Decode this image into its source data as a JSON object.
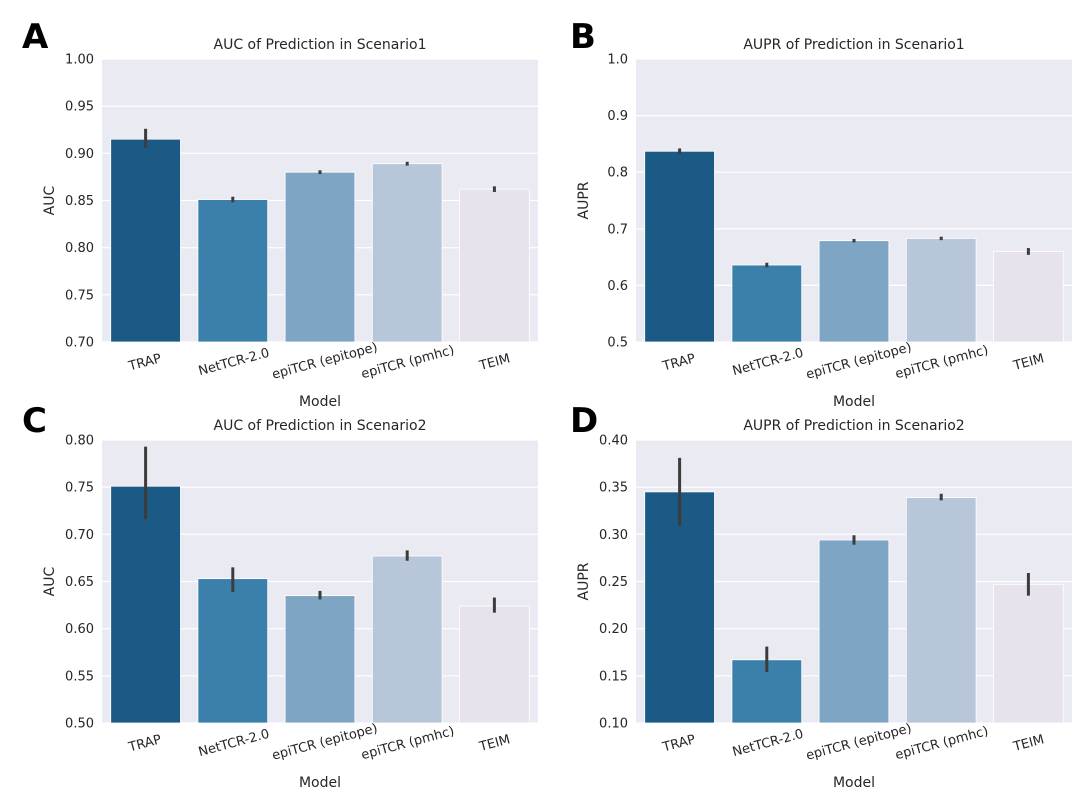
{
  "chart_data": [
    {
      "panel_label": "A",
      "type": "bar",
      "title": "AUC of Prediction in Scenario1",
      "xlabel": "Model",
      "ylabel": "AUC",
      "categories": [
        "TRAP",
        "NetTCR-2.0",
        "epiTCR (epitope)",
        "epiTCR (pmhc)",
        "TEIM"
      ],
      "values": [
        0.915,
        0.851,
        0.88,
        0.889,
        0.862
      ],
      "errors": [
        [
          0.906,
          0.926
        ],
        [
          0.848,
          0.854
        ],
        [
          0.878,
          0.882
        ],
        [
          0.887,
          0.891
        ],
        [
          0.859,
          0.865
        ]
      ],
      "ylim": [
        0.7,
        1.0
      ],
      "yticks": [
        "0.70",
        "0.75",
        "0.80",
        "0.85",
        "0.90",
        "0.95",
        "1.00"
      ],
      "grid": true
    },
    {
      "panel_label": "B",
      "type": "bar",
      "title": "AUPR of Prediction in Scenario1",
      "xlabel": "Model",
      "ylabel": "AUPR",
      "categories": [
        "TRAP",
        "NetTCR-2.0",
        "epiTCR (epitope)",
        "epiTCR (pmhc)",
        "TEIM"
      ],
      "values": [
        0.837,
        0.636,
        0.679,
        0.683,
        0.66
      ],
      "errors": [
        [
          0.832,
          0.842
        ],
        [
          0.632,
          0.64
        ],
        [
          0.676,
          0.682
        ],
        [
          0.68,
          0.686
        ],
        [
          0.654,
          0.666
        ]
      ],
      "ylim": [
        0.5,
        1.0
      ],
      "yticks": [
        "0.5",
        "0.6",
        "0.7",
        "0.8",
        "0.9",
        "1.0"
      ],
      "grid": true
    },
    {
      "panel_label": "C",
      "type": "bar",
      "title": "AUC of Prediction in Scenario2",
      "xlabel": "Model",
      "ylabel": "AUC",
      "categories": [
        "TRAP",
        "NetTCR-2.0",
        "epiTCR (epitope)",
        "epiTCR (pmhc)",
        "TEIM"
      ],
      "values": [
        0.751,
        0.653,
        0.635,
        0.677,
        0.624
      ],
      "errors": [
        [
          0.716,
          0.793
        ],
        [
          0.639,
          0.665
        ],
        [
          0.631,
          0.64
        ],
        [
          0.672,
          0.683
        ],
        [
          0.617,
          0.633
        ]
      ],
      "ylim": [
        0.5,
        0.8
      ],
      "yticks": [
        "0.50",
        "0.55",
        "0.60",
        "0.65",
        "0.70",
        "0.75",
        "0.80"
      ],
      "grid": true
    },
    {
      "panel_label": "D",
      "type": "bar",
      "title": "AUPR of Prediction in Scenario2",
      "xlabel": "Model",
      "ylabel": "AUPR",
      "categories": [
        "TRAP",
        "NetTCR-2.0",
        "epiTCR (epitope)",
        "epiTCR (pmhc)",
        "TEIM"
      ],
      "values": [
        0.345,
        0.167,
        0.294,
        0.339,
        0.247
      ],
      "errors": [
        [
          0.309,
          0.381
        ],
        [
          0.154,
          0.181
        ],
        [
          0.289,
          0.299
        ],
        [
          0.336,
          0.343
        ],
        [
          0.235,
          0.259
        ]
      ],
      "ylim": [
        0.1,
        0.4
      ],
      "yticks": [
        "0.10",
        "0.15",
        "0.20",
        "0.25",
        "0.30",
        "0.35",
        "0.40"
      ],
      "grid": true
    }
  ],
  "colors": {
    "bars": [
      "#1a5a84",
      "#3a80ab",
      "#7ea6c4",
      "#b8c6da",
      "#e6e3ec"
    ],
    "plot_background": "#eaeaf2",
    "grid": "#ffffff",
    "error_bar": "#3c3c3c",
    "text": "#262626"
  }
}
